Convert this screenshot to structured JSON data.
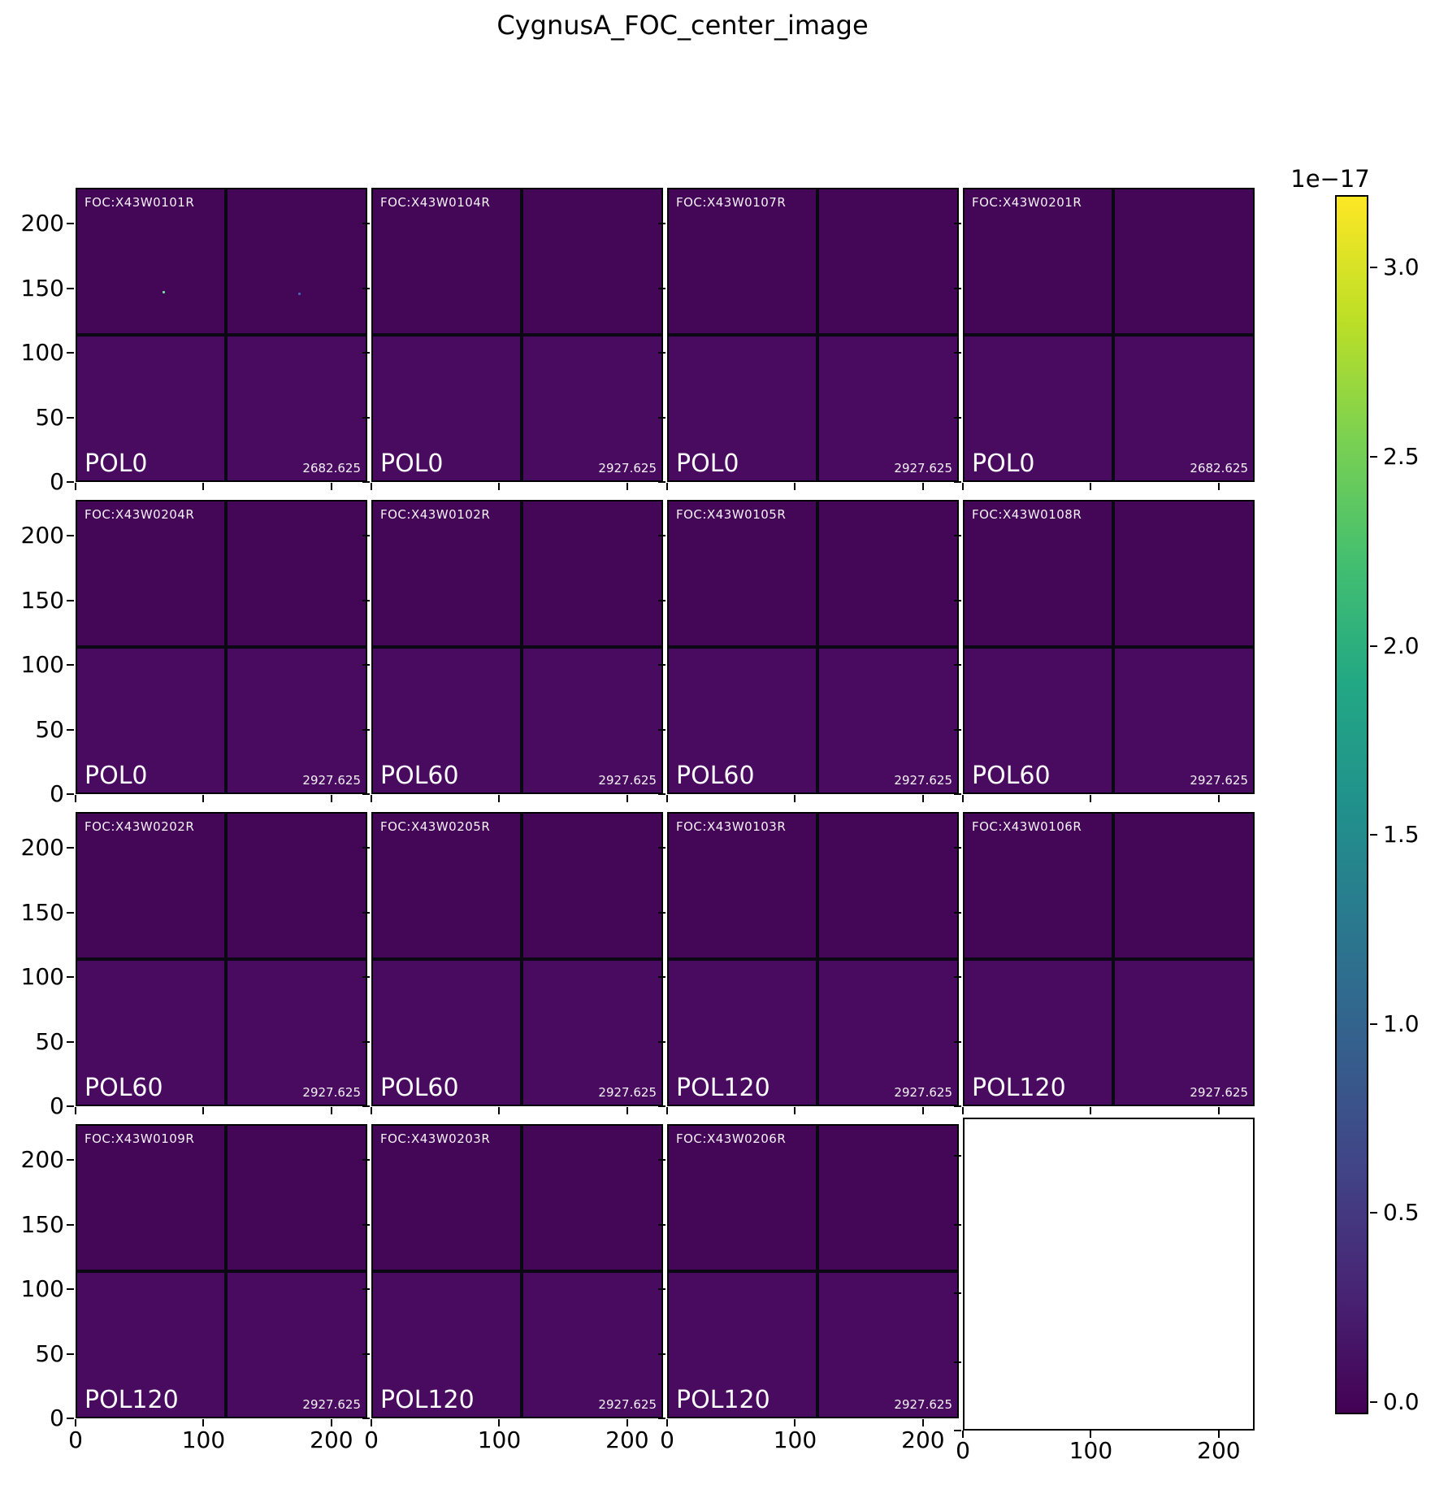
{
  "title": "CygnusA_FOC_center_image",
  "axes": {
    "x_tick_labels": [
      "0",
      "100",
      "200"
    ],
    "y_tick_labels": [
      "0",
      "50",
      "100",
      "150",
      "200"
    ]
  },
  "colorbar": {
    "scale_label": "1e−17",
    "tick_labels": [
      "0.0",
      "0.5",
      "1.0",
      "1.5",
      "2.0",
      "2.5",
      "3.0"
    ],
    "colormap_name": "viridis",
    "gradient_stops": [
      "#440154",
      "#482475",
      "#414487",
      "#355f8d",
      "#2a788e",
      "#21918c",
      "#22a884",
      "#44bf70",
      "#7ad151",
      "#bddf26",
      "#fde725"
    ]
  },
  "colors": {
    "image_top": "#440657",
    "image_bottom": "#490b60",
    "chip_gap": "#0a0812",
    "label_text": "#ffffff"
  },
  "panels": [
    {
      "row": 0,
      "col": 0,
      "id": "FOC:X43W0101R",
      "pol": "POL0",
      "value": "2682.625",
      "dots": [
        {
          "xf": 0.295,
          "yf": 0.348,
          "color": "#7be3a0"
        },
        {
          "xf": 0.766,
          "yf": 0.354,
          "color": "#4666b0"
        }
      ]
    },
    {
      "row": 0,
      "col": 1,
      "id": "FOC:X43W0104R",
      "pol": "POL0",
      "value": "2927.625",
      "dots": []
    },
    {
      "row": 0,
      "col": 2,
      "id": "FOC:X43W0107R",
      "pol": "POL0",
      "value": "2927.625",
      "dots": []
    },
    {
      "row": 0,
      "col": 3,
      "id": "FOC:X43W0201R",
      "pol": "POL0",
      "value": "2682.625",
      "dots": []
    },
    {
      "row": 1,
      "col": 0,
      "id": "FOC:X43W0204R",
      "pol": "POL0",
      "value": "2927.625",
      "dots": []
    },
    {
      "row": 1,
      "col": 1,
      "id": "FOC:X43W0102R",
      "pol": "POL60",
      "value": "2927.625",
      "dots": []
    },
    {
      "row": 1,
      "col": 2,
      "id": "FOC:X43W0105R",
      "pol": "POL60",
      "value": "2927.625",
      "dots": []
    },
    {
      "row": 1,
      "col": 3,
      "id": "FOC:X43W0108R",
      "pol": "POL60",
      "value": "2927.625",
      "dots": []
    },
    {
      "row": 2,
      "col": 0,
      "id": "FOC:X43W0202R",
      "pol": "POL60",
      "value": "2927.625",
      "dots": []
    },
    {
      "row": 2,
      "col": 1,
      "id": "FOC:X43W0205R",
      "pol": "POL60",
      "value": "2927.625",
      "dots": []
    },
    {
      "row": 2,
      "col": 2,
      "id": "FOC:X43W0103R",
      "pol": "POL120",
      "value": "2927.625",
      "dots": []
    },
    {
      "row": 2,
      "col": 3,
      "id": "FOC:X43W0106R",
      "pol": "POL120",
      "value": "2927.625",
      "dots": []
    },
    {
      "row": 3,
      "col": 0,
      "id": "FOC:X43W0109R",
      "pol": "POL120",
      "value": "2927.625",
      "dots": []
    },
    {
      "row": 3,
      "col": 1,
      "id": "FOC:X43W0203R",
      "pol": "POL120",
      "value": "2927.625",
      "dots": []
    },
    {
      "row": 3,
      "col": 2,
      "id": "FOC:X43W0206R",
      "pol": "POL120",
      "value": "2927.625",
      "dots": []
    },
    {
      "row": 3,
      "col": 3,
      "empty": true
    }
  ],
  "chart_data": {
    "type": "heatmap",
    "title": "CygnusA_FOC_center_image",
    "layout": "4x4 grid of HST FOC image panels sharing x/y axes; last cell (row 4, col 4) is an empty axes frame",
    "colormap": "viridis",
    "colorbar": {
      "scale_factor_label": "1e−17",
      "tick_values": [
        0.0,
        0.5,
        1.0,
        1.5,
        2.0,
        2.5,
        3.0
      ]
    },
    "x_axis": {
      "tick_values": [
        0,
        100,
        200
      ],
      "range": [
        0,
        228
      ],
      "shared": true
    },
    "y_axis": {
      "tick_values": [
        0,
        50,
        100,
        150,
        200
      ],
      "range": [
        0,
        228
      ],
      "shared": true
    },
    "panels": [
      {
        "row": 1,
        "col": 1,
        "dataset": "FOC:X43W0101R",
        "polarizer": "POL0",
        "value": 2682.625
      },
      {
        "row": 1,
        "col": 2,
        "dataset": "FOC:X43W0104R",
        "polarizer": "POL0",
        "value": 2927.625
      },
      {
        "row": 1,
        "col": 3,
        "dataset": "FOC:X43W0107R",
        "polarizer": "POL0",
        "value": 2927.625
      },
      {
        "row": 1,
        "col": 4,
        "dataset": "FOC:X43W0201R",
        "polarizer": "POL0",
        "value": 2682.625
      },
      {
        "row": 2,
        "col": 1,
        "dataset": "FOC:X43W0204R",
        "polarizer": "POL0",
        "value": 2927.625
      },
      {
        "row": 2,
        "col": 2,
        "dataset": "FOC:X43W0102R",
        "polarizer": "POL60",
        "value": 2927.625
      },
      {
        "row": 2,
        "col": 3,
        "dataset": "FOC:X43W0105R",
        "polarizer": "POL60",
        "value": 2927.625
      },
      {
        "row": 2,
        "col": 4,
        "dataset": "FOC:X43W0108R",
        "polarizer": "POL60",
        "value": 2927.625
      },
      {
        "row": 3,
        "col": 1,
        "dataset": "FOC:X43W0202R",
        "polarizer": "POL60",
        "value": 2927.625
      },
      {
        "row": 3,
        "col": 2,
        "dataset": "FOC:X43W0205R",
        "polarizer": "POL60",
        "value": 2927.625
      },
      {
        "row": 3,
        "col": 3,
        "dataset": "FOC:X43W0103R",
        "polarizer": "POL120",
        "value": 2927.625
      },
      {
        "row": 3,
        "col": 4,
        "dataset": "FOC:X43W0106R",
        "polarizer": "POL120",
        "value": 2927.625
      },
      {
        "row": 4,
        "col": 1,
        "dataset": "FOC:X43W0109R",
        "polarizer": "POL120",
        "value": 2927.625
      },
      {
        "row": 4,
        "col": 2,
        "dataset": "FOC:X43W0203R",
        "polarizer": "POL120",
        "value": 2927.625
      },
      {
        "row": 4,
        "col": 3,
        "dataset": "FOC:X43W0206R",
        "polarizer": "POL120",
        "value": 2927.625
      },
      {
        "row": 4,
        "col": 4,
        "dataset": null,
        "polarizer": null,
        "value": null,
        "empty": true
      }
    ]
  }
}
